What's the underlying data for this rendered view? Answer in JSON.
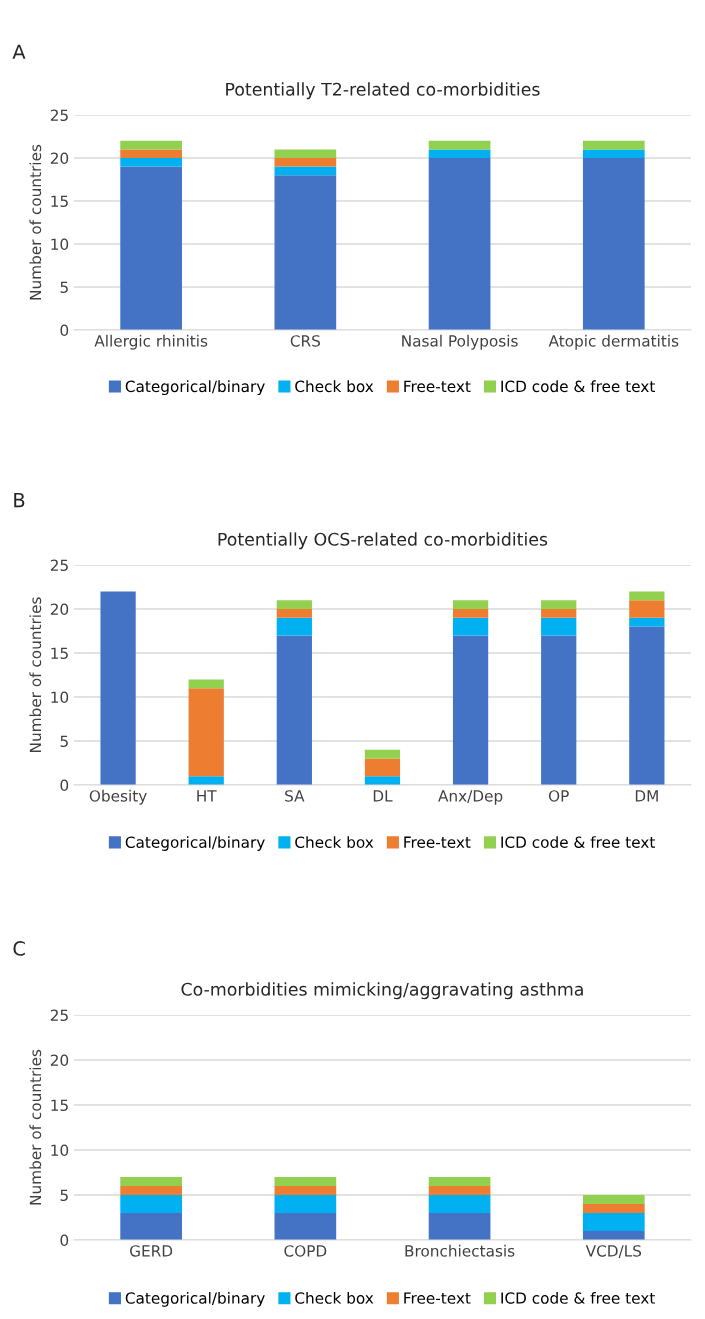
{
  "chart_data": [
    {
      "type": "bar",
      "stacked": true,
      "title": "Potentially T2-related co-morbidities",
      "ylabel": "Number of countries",
      "annotations": [
        "A"
      ],
      "categories": [
        "Allergic rhinitis",
        "CRS",
        "Nasal Polyposis",
        "Atopic dermatitis"
      ],
      "ylim": [
        0,
        25
      ],
      "yticks": [
        0,
        5,
        10,
        15,
        20,
        25
      ],
      "grid": "y",
      "legend": "bottom",
      "series": [
        {
          "name": "Categorical/binary",
          "color": "#4472c4",
          "values": [
            19,
            18,
            20,
            20
          ]
        },
        {
          "name": "Check box",
          "color": "#00b0f0",
          "values": [
            1,
            1,
            1,
            1
          ]
        },
        {
          "name": "Free-text",
          "color": "#ed7d31",
          "values": [
            1,
            1,
            0,
            0
          ]
        },
        {
          "name": "ICD code & free text",
          "color": "#92d050",
          "values": [
            1,
            1,
            1,
            1
          ]
        }
      ]
    },
    {
      "type": "bar",
      "stacked": true,
      "title": "Potentially OCS-related co-morbidities",
      "ylabel": "Number of countries",
      "annotations": [
        "B"
      ],
      "categories": [
        "Obesity",
        "HT",
        "SA",
        "DL",
        "Anx/Dep",
        "OP",
        "DM"
      ],
      "ylim": [
        0,
        25
      ],
      "yticks": [
        0,
        5,
        10,
        15,
        20,
        25
      ],
      "grid": "y",
      "legend": "bottom",
      "series": [
        {
          "name": "Categorical/binary",
          "color": "#4472c4",
          "values": [
            22,
            0,
            17,
            0,
            17,
            17,
            18
          ]
        },
        {
          "name": "Check box",
          "color": "#00b0f0",
          "values": [
            0,
            1,
            2,
            1,
            2,
            2,
            1
          ]
        },
        {
          "name": "Free-text",
          "color": "#ed7d31",
          "values": [
            0,
            10,
            1,
            2,
            1,
            1,
            2
          ]
        },
        {
          "name": "ICD code & free text",
          "color": "#92d050",
          "values": [
            0,
            1,
            1,
            1,
            1,
            1,
            1
          ]
        }
      ]
    },
    {
      "type": "bar",
      "stacked": true,
      "title": "Co-morbidities mimicking/aggravating asthma",
      "ylabel": "Number of countries",
      "annotations": [
        "C"
      ],
      "categories": [
        "GERD",
        "COPD",
        "Bronchiectasis",
        "VCD/LS"
      ],
      "ylim": [
        0,
        25
      ],
      "yticks": [
        0,
        5,
        10,
        15,
        20,
        25
      ],
      "grid": "y",
      "legend": "bottom",
      "series": [
        {
          "name": "Categorical/binary",
          "color": "#4472c4",
          "values": [
            3,
            3,
            3,
            1
          ]
        },
        {
          "name": "Check box",
          "color": "#00b0f0",
          "values": [
            2,
            2,
            2,
            2
          ]
        },
        {
          "name": "Free-text",
          "color": "#ed7d31",
          "values": [
            1,
            1,
            1,
            1
          ]
        },
        {
          "name": "ICD code & free text",
          "color": "#92d050",
          "values": [
            1,
            1,
            1,
            1
          ]
        }
      ]
    }
  ]
}
